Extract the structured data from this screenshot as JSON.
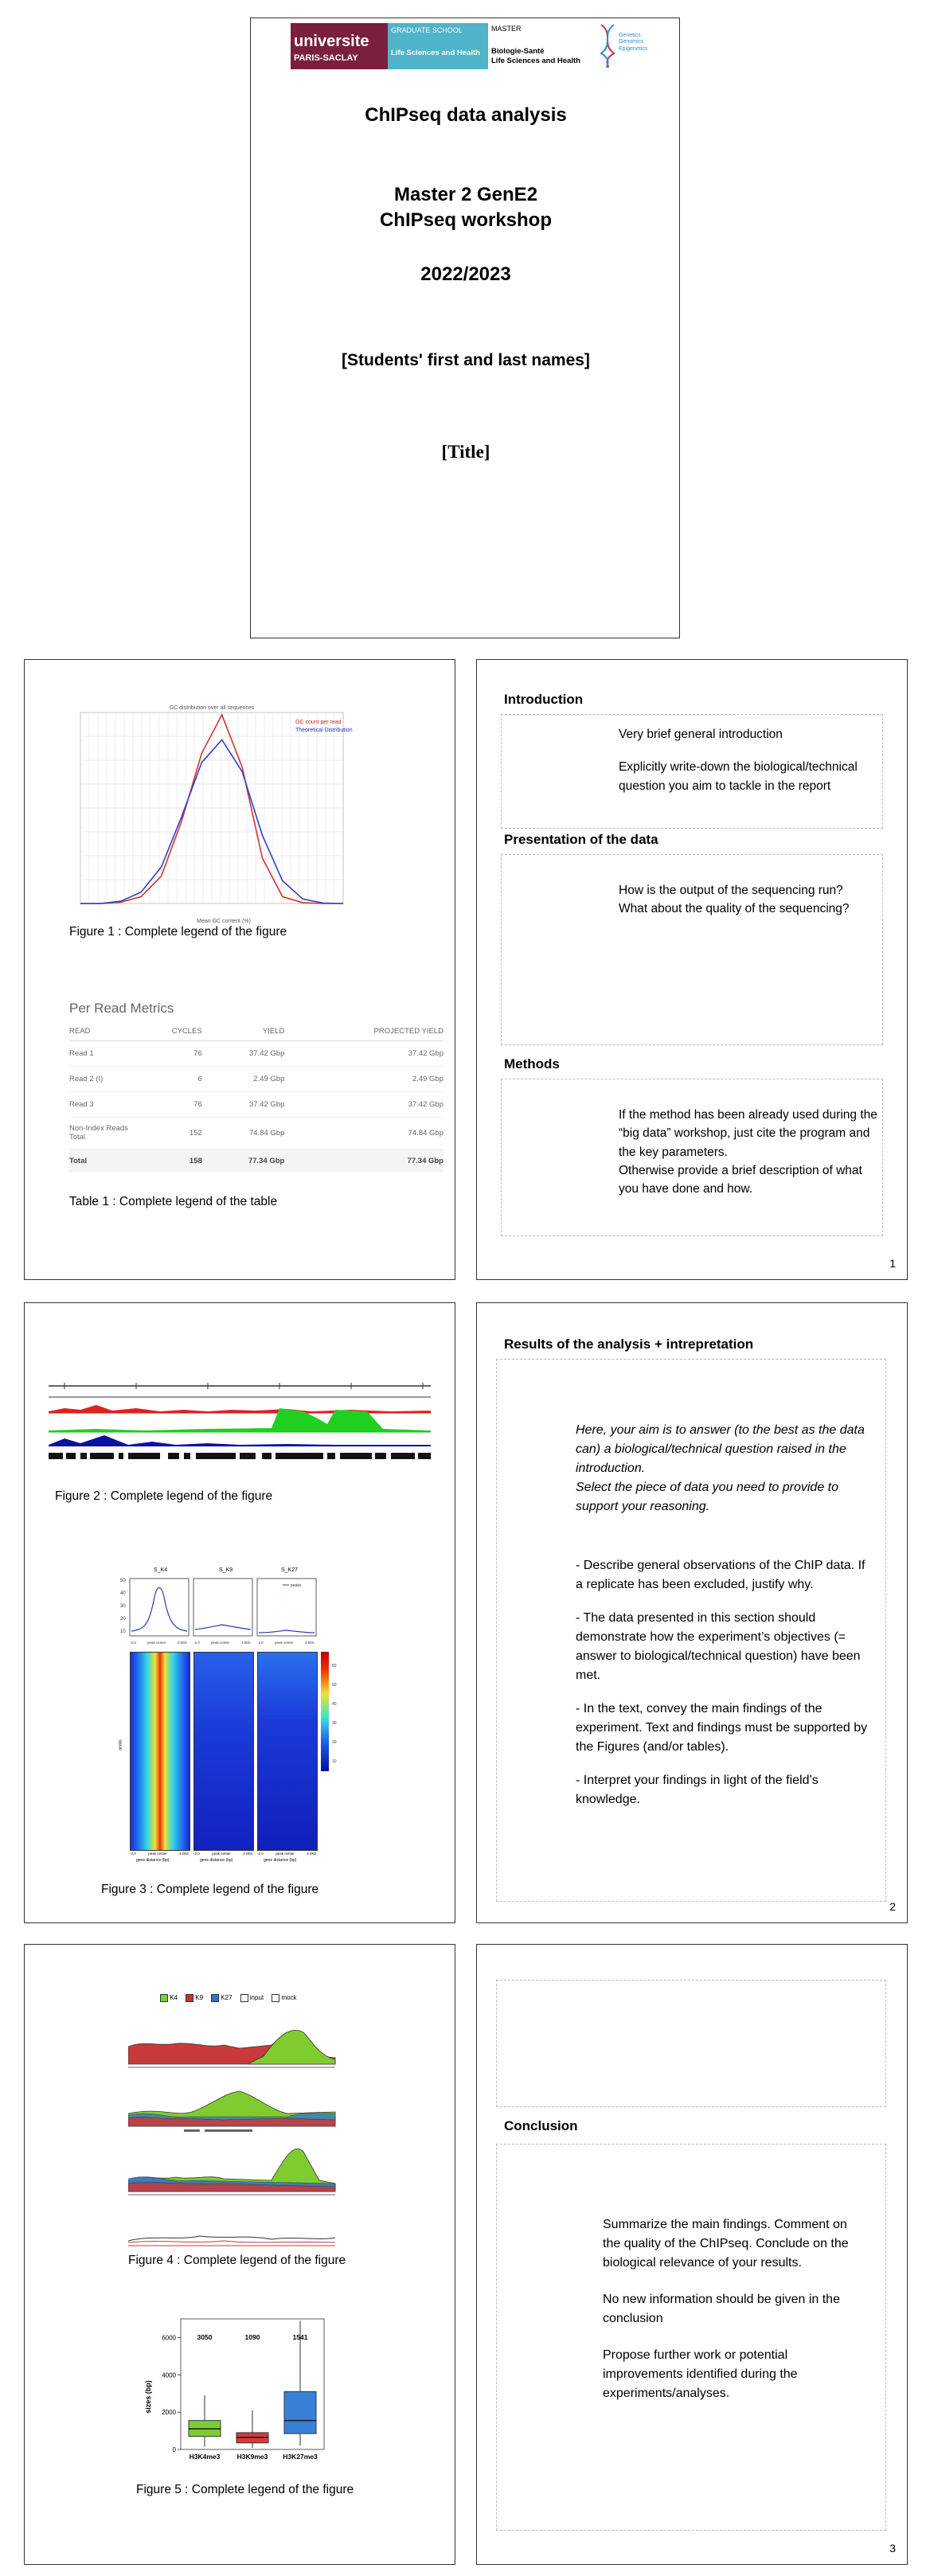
{
  "cover": {
    "logo_university_line1": "universite",
    "logo_university_line2": "PARIS-SACLAY",
    "logo_gs_line1": "GRADUATE SCHOOL",
    "logo_gs_line2": "Life Sciences and Health",
    "logo_master_line1": "MASTER",
    "logo_master_line2": "Biologie-Santé",
    "logo_master_line3": "Life Sciences and Health",
    "logo_gene_text": "Genetics Genomics Epigenetics",
    "title": "ChIPseq data analysis",
    "subtitle1": "Master 2 GenE2",
    "subtitle2": "ChIPseq workshop",
    "year": "2022/2023",
    "students": "[Students' first and last names]",
    "report_title": "[Title]"
  },
  "page1": {
    "fig1_chart_title": "GC distribution over all sequences",
    "fig1_legend1": "GC count per read",
    "fig1_legend2": "Theoretical Distribution",
    "fig1_xlabel": "Mean GC content (%)",
    "fig1_caption": "Figure 1 : Complete legend of the figure",
    "table_title": "Per Read Metrics",
    "table_headers": [
      "READ",
      "CYCLES",
      "YIELD",
      "PROJECTED YIELD"
    ],
    "table_rows": [
      [
        "Read 1",
        "76",
        "37.42 Gbp",
        "37.42 Gbp"
      ],
      [
        "Read 2 (I)",
        "6",
        "2.49 Gbp",
        "2.49 Gbp"
      ],
      [
        "Read 3",
        "76",
        "37.42 Gbp",
        "37.42 Gbp"
      ],
      [
        "Non-Index Reads Total",
        "152",
        "74.84 Gbp",
        "74.84 Gbp"
      ],
      [
        "Total",
        "158",
        "77.34 Gbp",
        "77.34 Gbp"
      ]
    ],
    "table_caption": "Table 1 : Complete legend of the table",
    "intro_h": "Introduction",
    "intro_t1": "Very brief general introduction",
    "intro_t2": "Explicitly write-down the biological/technical question you aim to tackle in the report",
    "pres_h": "Presentation of the data",
    "pres_t": "How is the output of the sequencing run? What about the quality of the sequencing?",
    "methods_h": "Methods",
    "methods_t1": "If the method has been already used during the “big data” workshop, just cite the program and the key parameters.",
    "methods_t2": "Otherwise provide a brief description of what you have done and how.",
    "page_number": "1"
  },
  "page2": {
    "fig2_caption": "Figure 2 : Complete legend of the figure",
    "fig3_panel_titles": [
      "S_K4",
      "S_K9",
      "S_K27"
    ],
    "fig3_yticks": [
      "50",
      "40",
      "30",
      "20",
      "10"
    ],
    "fig3_legend": "peaks",
    "fig3_x_label": "gene distance (bp)",
    "fig3_x_ticks": [
      "-2.0",
      "peak center",
      "2.0Kb"
    ],
    "fig3_y_label": "peaks",
    "fig3_colorbar_ticks": [
      "60",
      "50",
      "40",
      "30",
      "20",
      "10"
    ],
    "fig3_caption": "Figure 3 : Complete legend of the figure",
    "results_h": "Results of the analysis +  intrepretation",
    "results_i1": "Here, your aim is to answer (to the best as the data can) a biological/technical question raised in the introduction.",
    "results_i2": "Select the piece of data you need to provide to support your reasoning.",
    "results_b1": "- Describe general observations of the ChIP data. If a replicate has been excluded, justify why.",
    "results_b2": "- The data presented in this section should demonstrate how the experiment’s objectives (= answer to biological/technical question) have been met.",
    "results_b3": "- In the text, convey the main findings of the experiment. Text and findings must be supported by the Figures (and/or tables).",
    "results_b4": "- Interpret your findings in light of the field’s knowledge.",
    "page_number": "2"
  },
  "page3": {
    "fig4_legend": [
      "K4",
      "K9",
      "K27",
      "input",
      "mock"
    ],
    "fig4_caption": "Figure 4 : Complete legend of the figure",
    "fig5_ylabel": "sizes (bp)",
    "fig5_yticks": [
      "6000",
      "4000",
      "2000",
      "0"
    ],
    "fig5_labels": [
      "H3K4me3",
      "H3K9me3",
      "H3K27me3"
    ],
    "fig5_counts": [
      "3050",
      "1090",
      "1541"
    ],
    "fig5_caption": "Figure 5 : Complete legend of the figure",
    "conclusion_h": "Conclusion",
    "conc_t1": "Summarize the main findings. Comment on the quality of the ChIPseq. Conclude on the biological relevance of your results.",
    "conc_t2": "No new information should be given in the conclusion",
    "conc_t3": "Propose further work or potential improvements identified during the experiments/analyses.",
    "page_number": "3"
  },
  "chart_data": [
    {
      "type": "line",
      "title": "GC distribution over all sequences",
      "xlabel": "Mean GC content (%)",
      "x": [
        20,
        25,
        30,
        35,
        40,
        45,
        50,
        55,
        60,
        65,
        70,
        75,
        80,
        85
      ],
      "series": [
        {
          "name": "GC count per read",
          "values": [
            0,
            0,
            3000,
            15000,
            60000,
            180000,
            330000,
            415000,
            300000,
            100000,
            15000,
            2000,
            0,
            0
          ]
        },
        {
          "name": "Theoretical Distribution",
          "values": [
            0,
            0,
            5000,
            25000,
            80000,
            190000,
            310000,
            360000,
            290000,
            150000,
            50000,
            10000,
            1000,
            0
          ]
        }
      ],
      "ylim": [
        0,
        420000
      ],
      "grid": true,
      "legend": "top-right"
    },
    {
      "type": "bar",
      "title": "",
      "ylabel": "sizes (bp)",
      "categories": [
        "H3K4me3",
        "H3K9me3",
        "H3K27me3"
      ],
      "series": [
        {
          "name": "",
          "values": [
            1100,
            650,
            1550
          ]
        }
      ],
      "box": [
        {
          "min": 150,
          "q1": 700,
          "median": 1100,
          "q3": 1550,
          "max": 2900
        },
        {
          "min": 80,
          "q1": 350,
          "median": 650,
          "q3": 900,
          "max": 2100
        },
        {
          "min": 200,
          "q1": 850,
          "median": 1550,
          "q3": 3100,
          "max": 6900
        }
      ],
      "counts": [
        3050,
        1090,
        1541
      ],
      "ylim": [
        0,
        7000
      ]
    }
  ]
}
